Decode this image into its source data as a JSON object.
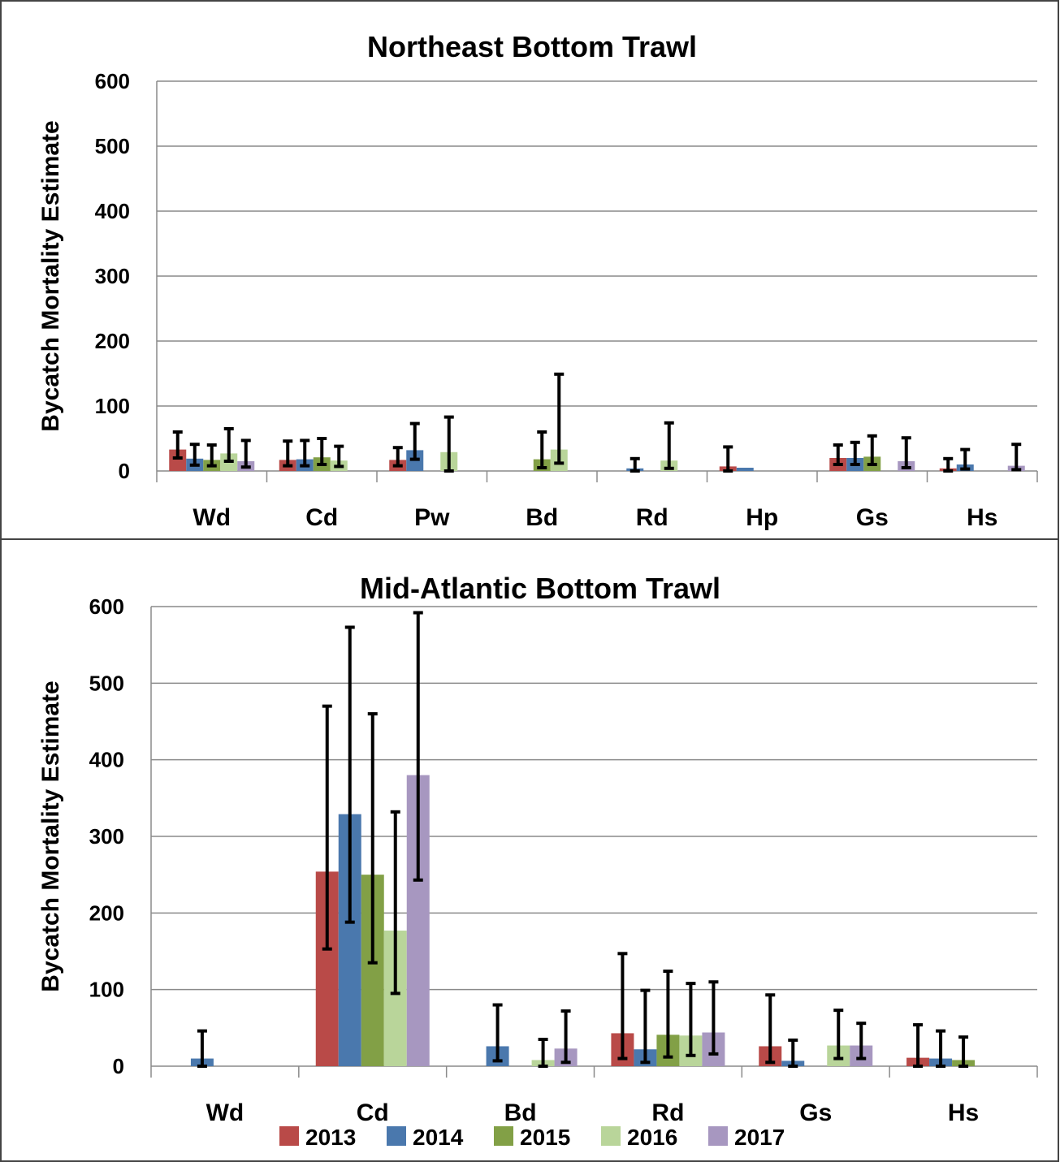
{
  "chart_data": [
    {
      "type": "bar",
      "title": "Northeast Bottom Trawl",
      "xlabel": "",
      "ylabel": "Bycatch Mortality Estimate",
      "ylim": [
        0,
        600
      ],
      "yticks": [
        0,
        100,
        200,
        300,
        400,
        500,
        600
      ],
      "grid": true,
      "categories": [
        "Wd",
        "Cd",
        "Pw",
        "Bd",
        "Rd",
        "Hp",
        "Gs",
        "Hs"
      ],
      "series": [
        {
          "name": "2013",
          "values": [
            33,
            17,
            17,
            0,
            0,
            7,
            20,
            4
          ],
          "error_low": [
            20,
            8,
            8,
            0,
            0,
            0,
            10,
            0
          ],
          "error_high": [
            60,
            46,
            36,
            0,
            0,
            37,
            40,
            19
          ]
        },
        {
          "name": "2014",
          "values": [
            19,
            18,
            32,
            0,
            4,
            5,
            20,
            10
          ],
          "error_low": [
            9,
            8,
            18,
            0,
            0,
            0,
            10,
            3
          ],
          "error_high": [
            41,
            47,
            73,
            0,
            19,
            0,
            44,
            33
          ]
        },
        {
          "name": "2015",
          "values": [
            17,
            21,
            0,
            18,
            0,
            0,
            22,
            0
          ],
          "error_low": [
            8,
            10,
            0,
            5,
            0,
            0,
            10,
            0
          ],
          "error_high": [
            40,
            50,
            0,
            60,
            0,
            0,
            54,
            0
          ]
        },
        {
          "name": "2016",
          "values": [
            27,
            16,
            29,
            33,
            16,
            0,
            0,
            0
          ],
          "error_low": [
            15,
            7,
            0,
            12,
            4,
            0,
            0,
            0
          ],
          "error_high": [
            65,
            38,
            83,
            149,
            74,
            0,
            0,
            0
          ]
        },
        {
          "name": "2017",
          "values": [
            15,
            0,
            0,
            0,
            0,
            0,
            15,
            8
          ],
          "error_low": [
            6,
            0,
            0,
            0,
            0,
            0,
            5,
            2
          ],
          "error_high": [
            47,
            0,
            0,
            0,
            0,
            0,
            51,
            41
          ]
        }
      ]
    },
    {
      "type": "bar",
      "title": "Mid-Atlantic Bottom Trawl",
      "xlabel": "",
      "ylabel": "Bycatch Mortality Estimate",
      "ylim": [
        0,
        600
      ],
      "yticks": [
        0,
        100,
        200,
        300,
        400,
        500,
        600
      ],
      "grid": true,
      "categories": [
        "Wd",
        "Cd",
        "Bd",
        "Rd",
        "Gs",
        "Hs"
      ],
      "series": [
        {
          "name": "2013",
          "values": [
            0,
            254,
            0,
            43,
            26,
            11
          ],
          "error_low": [
            0,
            153,
            0,
            10,
            5,
            0
          ],
          "error_high": [
            0,
            470,
            0,
            147,
            93,
            54
          ]
        },
        {
          "name": "2014",
          "values": [
            10,
            329,
            26,
            22,
            7,
            10
          ],
          "error_low": [
            0,
            188,
            7,
            5,
            0,
            0
          ],
          "error_high": [
            46,
            573,
            80,
            99,
            34,
            46
          ]
        },
        {
          "name": "2015",
          "values": [
            0,
            250,
            0,
            41,
            0,
            8
          ],
          "error_low": [
            0,
            135,
            0,
            12,
            0,
            0
          ],
          "error_high": [
            0,
            460,
            0,
            124,
            0,
            38
          ]
        },
        {
          "name": "2016",
          "values": [
            0,
            177,
            8,
            40,
            27,
            0
          ],
          "error_low": [
            0,
            95,
            0,
            14,
            10,
            0
          ],
          "error_high": [
            0,
            332,
            35,
            108,
            73,
            0
          ]
        },
        {
          "name": "2017",
          "values": [
            0,
            380,
            23,
            44,
            27,
            0
          ],
          "error_low": [
            0,
            243,
            5,
            16,
            10,
            0
          ],
          "error_high": [
            0,
            592,
            72,
            110,
            56,
            0
          ]
        }
      ]
    }
  ],
  "legend": {
    "position": "bottom",
    "items": [
      {
        "label": "2013",
        "color": "#b94a48"
      },
      {
        "label": "2014",
        "color": "#4a78ad"
      },
      {
        "label": "2015",
        "color": "#82a046"
      },
      {
        "label": "2016",
        "color": "#b9d59a"
      },
      {
        "label": "2017",
        "color": "#a797c0"
      }
    ]
  }
}
